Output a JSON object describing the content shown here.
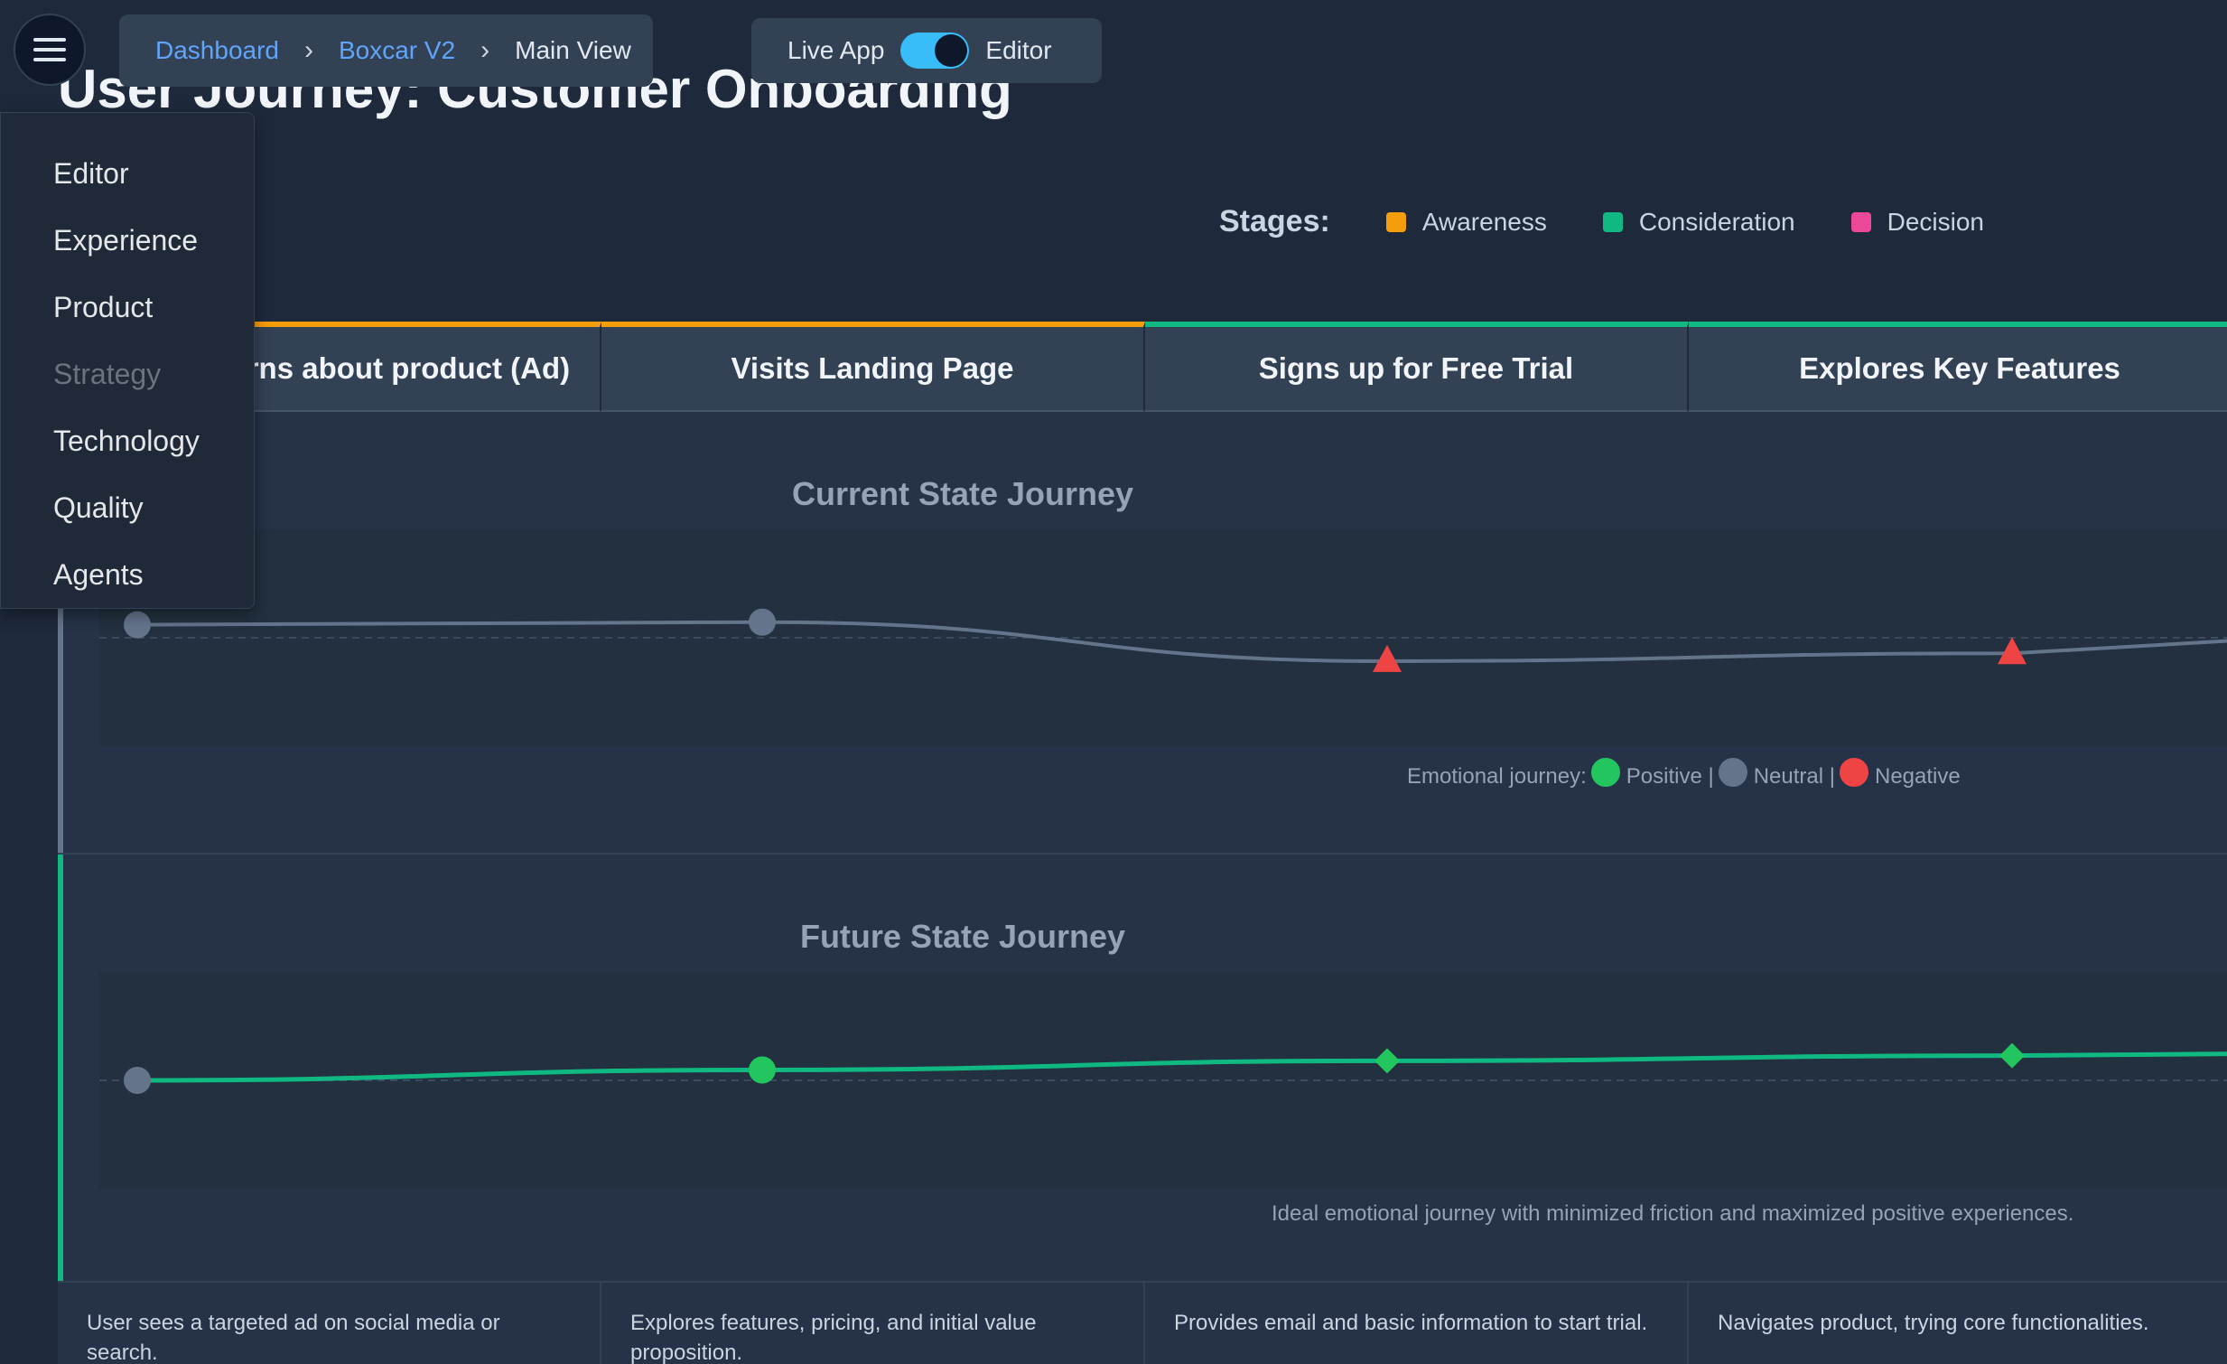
{
  "page": {
    "title": "User Journey: Customer Onboarding"
  },
  "topbar": {
    "breadcrumb": [
      "Dashboard",
      "Boxcar V2",
      "Main View"
    ],
    "mode_left": "Live App",
    "mode_right": "Editor",
    "toggle_on": true
  },
  "menu": {
    "items": [
      {
        "label": "Editor",
        "disabled": false
      },
      {
        "label": "Experience",
        "disabled": false
      },
      {
        "label": "Product",
        "disabled": false
      },
      {
        "label": "Strategy",
        "disabled": true
      },
      {
        "label": "Technology",
        "disabled": false
      },
      {
        "label": "Quality",
        "disabled": false
      },
      {
        "label": "Agents",
        "disabled": false
      }
    ]
  },
  "stages_legend": {
    "label": "Stages:",
    "items": [
      {
        "name": "Awareness",
        "color": "#f59e0b"
      },
      {
        "name": "Consideration",
        "color": "#10b981"
      },
      {
        "name": "Decision",
        "color": "#ec4899"
      }
    ]
  },
  "steps": [
    {
      "label": "Learns about product (Ad)",
      "stage_color": "#f59e0b",
      "description": "User sees a targeted ad on social media or search."
    },
    {
      "label": "Visits Landing Page",
      "stage_color": "#f59e0b",
      "description": "Explores features, pricing, and initial value proposition."
    },
    {
      "label": "Signs up for Free Trial",
      "stage_color": "#10b981",
      "description": "Provides email and basic information to start trial."
    },
    {
      "label": "Explores Key Features",
      "stage_color": "#10b981",
      "description": "Navigates product, trying core functionalities."
    }
  ],
  "current_journey": {
    "title": "Current State Journey",
    "legend_label": "Emotional journey:",
    "legend_positive": "Positive |",
    "legend_neutral": "Neutral |",
    "legend_negative": "Negative",
    "colors": {
      "positive": "#22c55e",
      "neutral": "#64748b",
      "negative": "#ef4444"
    },
    "line_color": "#64748b",
    "points": [
      {
        "emotion": "neutral",
        "score": 0.1
      },
      {
        "emotion": "neutral",
        "score": 0.12
      },
      {
        "emotion": "negative",
        "score": -0.18
      },
      {
        "emotion": "negative",
        "score": -0.12
      }
    ]
  },
  "future_journey": {
    "title": "Future State Journey",
    "caption": "Ideal emotional journey with minimized friction and maximized positive experiences.",
    "line_color": "#10b981",
    "points": [
      {
        "emotion": "neutral",
        "score": 0.0
      },
      {
        "emotion": "positive",
        "score": 0.08
      },
      {
        "emotion": "positive",
        "score": 0.15
      },
      {
        "emotion": "positive",
        "score": 0.19
      }
    ]
  }
}
